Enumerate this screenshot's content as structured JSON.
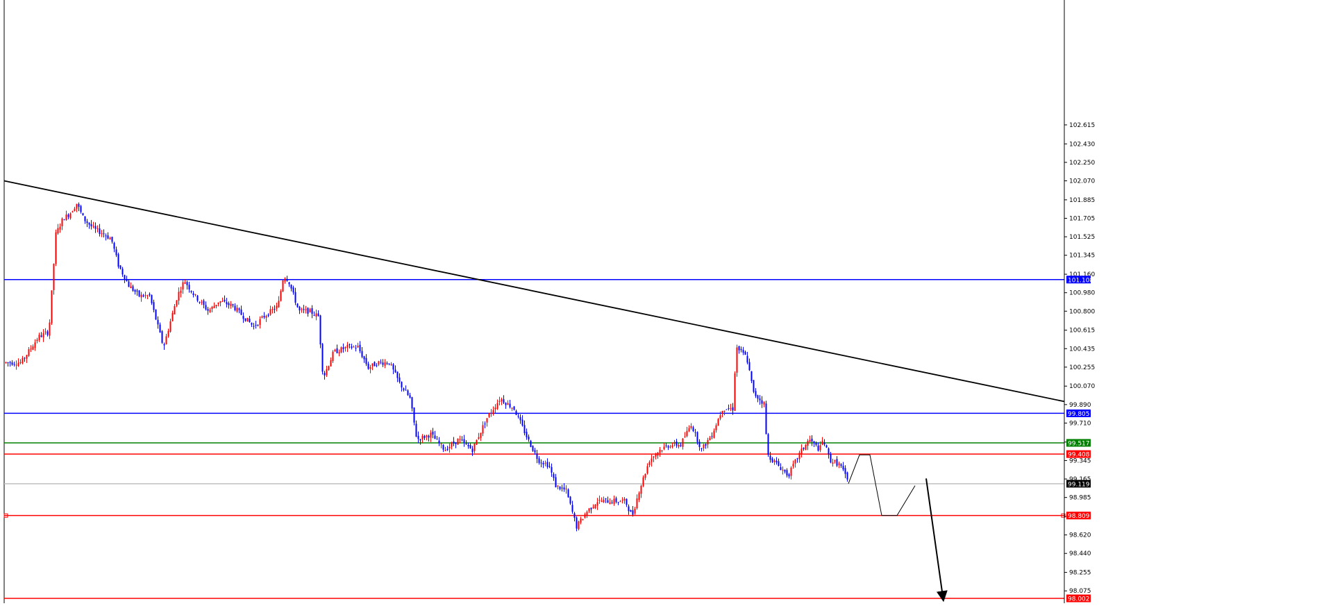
{
  "chart_data": {
    "type": "candlestick",
    "title": "",
    "xlabel": "",
    "ylabel": "",
    "ylim": [
      97.95,
      102.7
    ],
    "y_ticks": [
      "102.615",
      "102.430",
      "102.250",
      "102.070",
      "101.885",
      "101.705",
      "101.525",
      "101.345",
      "101.160",
      "100.980",
      "100.800",
      "100.615",
      "100.435",
      "100.255",
      "100.070",
      "99.890",
      "99.710",
      "99.525",
      "99.345",
      "99.165",
      "98.985",
      "98.800",
      "98.620",
      "98.440",
      "98.255",
      "98.075"
    ],
    "y_tick_values": [
      102.615,
      102.43,
      102.25,
      102.07,
      101.885,
      101.705,
      101.525,
      101.345,
      101.16,
      100.98,
      100.8,
      100.615,
      100.435,
      100.255,
      100.07,
      99.89,
      99.71,
      99.525,
      99.345,
      99.165,
      98.985,
      98.8,
      98.62,
      98.44,
      98.255,
      98.075
    ],
    "price_path": [
      [
        0,
        100.3
      ],
      [
        30,
        100.3
      ],
      [
        55,
        100.55
      ],
      [
        70,
        100.6
      ],
      [
        80,
        101.55
      ],
      [
        90,
        101.7
      ],
      [
        100,
        101.75
      ],
      [
        110,
        101.85
      ],
      [
        120,
        101.7
      ],
      [
        135,
        101.6
      ],
      [
        150,
        101.55
      ],
      [
        160,
        101.5
      ],
      [
        170,
        101.25
      ],
      [
        185,
        101.05
      ],
      [
        200,
        100.95
      ],
      [
        215,
        100.95
      ],
      [
        225,
        100.7
      ],
      [
        235,
        100.45
      ],
      [
        245,
        100.7
      ],
      [
        255,
        100.95
      ],
      [
        265,
        101.1
      ],
      [
        280,
        100.95
      ],
      [
        300,
        100.8
      ],
      [
        315,
        100.9
      ],
      [
        335,
        100.85
      ],
      [
        350,
        100.75
      ],
      [
        365,
        100.65
      ],
      [
        380,
        100.75
      ],
      [
        400,
        100.85
      ],
      [
        408,
        101.15
      ],
      [
        415,
        101.1
      ],
      [
        430,
        100.8
      ],
      [
        445,
        100.8
      ],
      [
        458,
        100.75
      ],
      [
        465,
        100.15
      ],
      [
        480,
        100.4
      ],
      [
        500,
        100.45
      ],
      [
        515,
        100.45
      ],
      [
        530,
        100.25
      ],
      [
        545,
        100.3
      ],
      [
        560,
        100.3
      ],
      [
        575,
        100.1
      ],
      [
        590,
        99.95
      ],
      [
        600,
        99.55
      ],
      [
        620,
        99.6
      ],
      [
        640,
        99.45
      ],
      [
        660,
        99.55
      ],
      [
        680,
        99.45
      ],
      [
        700,
        99.75
      ],
      [
        720,
        99.95
      ],
      [
        740,
        99.85
      ],
      [
        760,
        99.55
      ],
      [
        775,
        99.35
      ],
      [
        790,
        99.3
      ],
      [
        800,
        99.1
      ],
      [
        815,
        99.05
      ],
      [
        830,
        98.7
      ],
      [
        845,
        98.85
      ],
      [
        860,
        98.95
      ],
      [
        880,
        98.95
      ],
      [
        900,
        98.95
      ],
      [
        910,
        98.8
      ],
      [
        920,
        99.05
      ],
      [
        935,
        99.35
      ],
      [
        950,
        99.45
      ],
      [
        965,
        99.5
      ],
      [
        980,
        99.5
      ],
      [
        995,
        99.7
      ],
      [
        1010,
        99.45
      ],
      [
        1025,
        99.6
      ],
      [
        1040,
        99.85
      ],
      [
        1055,
        99.85
      ],
      [
        1060,
        100.45
      ],
      [
        1075,
        100.35
      ],
      [
        1085,
        100.0
      ],
      [
        1100,
        99.9
      ],
      [
        1105,
        99.4
      ],
      [
        1120,
        99.3
      ],
      [
        1135,
        99.2
      ],
      [
        1150,
        99.4
      ],
      [
        1165,
        99.55
      ],
      [
        1180,
        99.45
      ],
      [
        1185,
        99.55
      ],
      [
        1195,
        99.35
      ],
      [
        1210,
        99.3
      ],
      [
        1222,
        99.12
      ]
    ],
    "horizontal_levels": [
      {
        "value": 101.108,
        "label": "101.108",
        "color": "#0000ff",
        "label_bg": "#0000ff"
      },
      {
        "value": 99.805,
        "label": "99.805",
        "color": "#0000ff",
        "label_bg": "#0000ff"
      },
      {
        "value": 99.517,
        "label": "99.517",
        "color": "#008000",
        "label_bg": "#008000"
      },
      {
        "value": 99.408,
        "label": "99.408",
        "color": "#ff0000",
        "label_bg": "#ff0000"
      },
      {
        "value": 99.119,
        "label": "99.119",
        "color": "#c0c0c0",
        "label_bg": "#000000"
      },
      {
        "value": 98.809,
        "label": "98.809",
        "color": "#ff0000",
        "label_bg": "#ff0000"
      },
      {
        "value": 98.002,
        "label": "98.002",
        "color": "#ff0000",
        "label_bg": "#ff0000"
      }
    ],
    "trendline": {
      "from": [
        6,
        102.07
      ],
      "to": [
        1533,
        99.92
      ],
      "color": "#000000"
    },
    "projection_arrows": [
      {
        "points": [
          [
            1222,
            99.12
          ],
          [
            1238,
            99.4
          ],
          [
            1253,
            99.4
          ],
          [
            1270,
            98.809
          ],
          [
            1292,
            98.809
          ],
          [
            1318,
            99.1
          ]
        ],
        "color": "#000000"
      },
      {
        "points": [
          [
            1334,
            99.17
          ],
          [
            1358,
            98.02
          ]
        ],
        "color": "#000000"
      }
    ],
    "colors": {
      "bull": "#ff0000",
      "bear": "#0000ff",
      "background": "#ffffff",
      "axis": "#000000"
    }
  }
}
